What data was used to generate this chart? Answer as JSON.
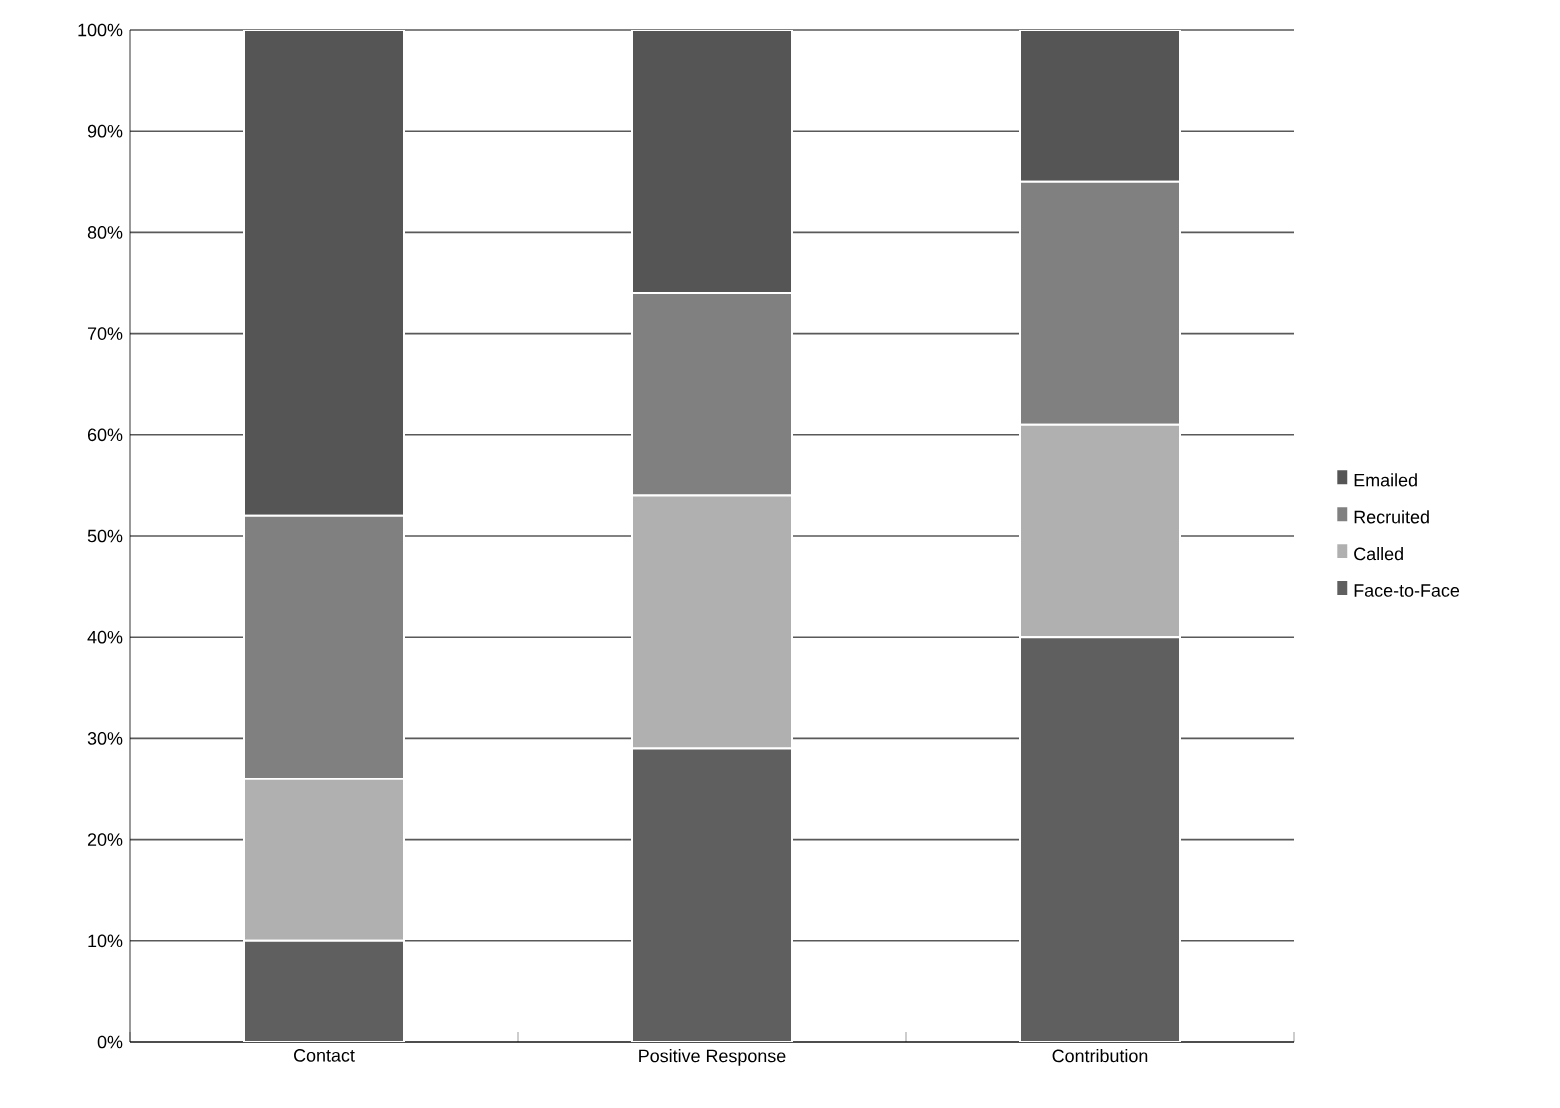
{
  "chart_data": {
    "type": "bar",
    "stacked": true,
    "categories": [
      "Contact",
      "Positive Response",
      "Contribution"
    ],
    "series": [
      {
        "name": "Face-to-Face",
        "color": "#5f5f5f",
        "values": [
          10,
          29,
          40
        ]
      },
      {
        "name": "Called",
        "color": "#b0b0b0",
        "values": [
          16,
          25,
          21
        ]
      },
      {
        "name": "Recruited",
        "color": "#808080",
        "values": [
          26,
          20,
          24
        ]
      },
      {
        "name": "Emailed",
        "color": "#555555",
        "values": [
          48,
          26,
          15
        ]
      }
    ],
    "ylim": [
      0,
      100
    ],
    "yticks": [
      {
        "value": 0,
        "label": "0%"
      },
      {
        "value": 10,
        "label": "10%"
      },
      {
        "value": 20,
        "label": "20%"
      },
      {
        "value": 30,
        "label": "30%"
      },
      {
        "value": 40,
        "label": "40%"
      },
      {
        "value": 50,
        "label": "50%"
      },
      {
        "value": 60,
        "label": "60%"
      },
      {
        "value": 70,
        "label": "70%"
      },
      {
        "value": 80,
        "label": "80%"
      },
      {
        "value": 90,
        "label": "90%"
      },
      {
        "value": 100,
        "label": "100%"
      }
    ],
    "grid": "y",
    "legend": "right"
  }
}
